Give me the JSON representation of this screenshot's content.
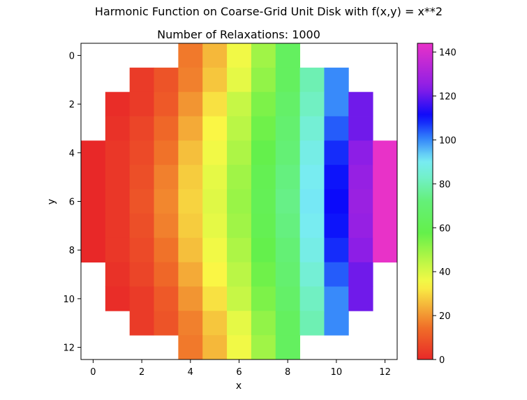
{
  "figure": {
    "suptitle": "Harmonic Function on Coarse-Grid Unit Disk with f(x,y) = x**2"
  },
  "chart_data": {
    "type": "heatmap",
    "title": "Number of Relaxations: 1000",
    "xlabel": "x",
    "ylabel": "y",
    "xlim": [
      -0.5,
      12.5
    ],
    "ylim": [
      12.5,
      -0.5
    ],
    "y_inverted": true,
    "x_ticks": [
      0,
      2,
      4,
      6,
      8,
      10,
      12
    ],
    "y_ticks": [
      0,
      2,
      4,
      6,
      8,
      10,
      12
    ],
    "grid": false,
    "colormap": "gist_rainbow_r",
    "colorbar": {
      "min": 0,
      "max": 144,
      "ticks": [
        0,
        20,
        40,
        60,
        80,
        100,
        120,
        140
      ],
      "placement": "right"
    },
    "rows": [
      {
        "y": 0,
        "x_start": 4,
        "values": [
          16,
          25,
          36,
          49,
          64
        ]
      },
      {
        "y": 1,
        "x_start": 2,
        "values": [
          4,
          9,
          17,
          27,
          38,
          51,
          64,
          80,
          100
        ]
      },
      {
        "y": 2,
        "x_start": 1,
        "values": [
          1,
          4,
          10,
          20,
          31,
          43,
          54,
          67,
          82,
          100,
          121
        ]
      },
      {
        "y": 3,
        "x_start": 1,
        "values": [
          2,
          6,
          13,
          23,
          34,
          45,
          56,
          69,
          85,
          104,
          121
        ]
      },
      {
        "y": 4,
        "x_start": 0,
        "values": [
          0,
          3,
          7,
          15,
          26,
          36,
          47,
          58,
          71,
          88,
          108,
          124,
          144
        ]
      },
      {
        "y": 5,
        "x_start": 0,
        "values": [
          0,
          3,
          8,
          17,
          28,
          38,
          49,
          60,
          73,
          90,
          110,
          126,
          144
        ]
      },
      {
        "y": 6,
        "x_start": 0,
        "values": [
          0,
          3,
          9,
          18,
          29,
          39,
          50,
          61,
          74,
          91,
          111,
          127,
          144
        ]
      },
      {
        "y": 7,
        "x_start": 0,
        "values": [
          0,
          3,
          8,
          17,
          28,
          38,
          49,
          60,
          73,
          90,
          110,
          126,
          144
        ]
      },
      {
        "y": 8,
        "x_start": 0,
        "values": [
          0,
          3,
          7,
          15,
          26,
          36,
          47,
          58,
          71,
          88,
          108,
          124,
          144
        ]
      },
      {
        "y": 9,
        "x_start": 1,
        "values": [
          2,
          6,
          13,
          23,
          34,
          45,
          56,
          69,
          85,
          104,
          121
        ]
      },
      {
        "y": 10,
        "x_start": 1,
        "values": [
          1,
          4,
          10,
          20,
          31,
          43,
          54,
          67,
          82,
          100,
          121
        ]
      },
      {
        "y": 11,
        "x_start": 2,
        "values": [
          4,
          9,
          17,
          27,
          38,
          51,
          64,
          80,
          100
        ]
      },
      {
        "y": 12,
        "x_start": 4,
        "values": [
          16,
          25,
          36,
          49,
          64
        ]
      }
    ]
  }
}
